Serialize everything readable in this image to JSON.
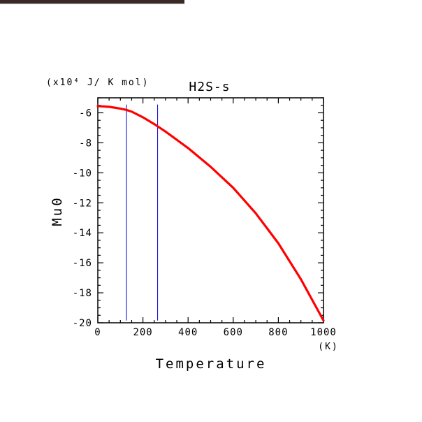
{
  "chart_data": {
    "type": "line",
    "title": "H2S-s",
    "xlabel": "Temperature",
    "ylabel": "Mu0",
    "x_unit": "(K)",
    "y_unit": "(x10⁴ J/ K mol)",
    "xlim": [
      0,
      1000
    ],
    "ylim": [
      -20,
      -5
    ],
    "x_ticks": [
      0,
      200,
      400,
      600,
      800,
      1000
    ],
    "x_tick_labels": [
      "0",
      "200",
      "400",
      "600",
      "800",
      "1000"
    ],
    "y_ticks": [
      -20,
      -18,
      -16,
      -14,
      -12,
      -10,
      -8,
      -6
    ],
    "y_tick_labels": [
      "-20",
      "-18",
      "-16",
      "-14",
      "-12",
      "-10",
      "-8",
      "-6"
    ],
    "grid": false,
    "series": [
      {
        "color": "#ff0000",
        "x": [
          0,
          50,
          100,
          125,
          150,
          200,
          250,
          265,
          300,
          400,
          500,
          600,
          700,
          800,
          900,
          1000
        ],
        "y": [
          -5.55,
          -5.6,
          -5.72,
          -5.8,
          -5.92,
          -6.3,
          -6.75,
          -6.9,
          -7.25,
          -8.35,
          -9.6,
          -11.0,
          -12.7,
          -14.7,
          -17.1,
          -19.85
        ]
      }
    ],
    "vertical_lines": [
      {
        "x": 127,
        "color": "#0000cc"
      },
      {
        "x": 265,
        "color": "#0000cc"
      }
    ]
  }
}
